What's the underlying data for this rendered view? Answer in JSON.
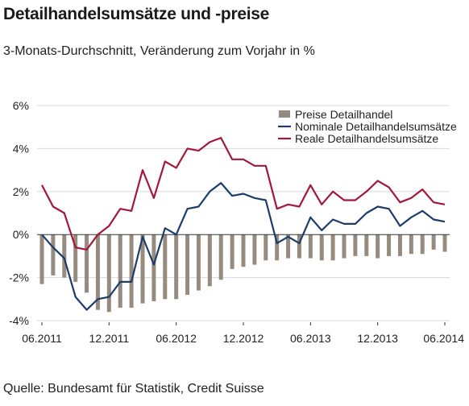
{
  "title": "Detailhandelsumsätze und -preise",
  "subtitle": "3-Monats-Durchschnitt, Veränderung zum Vorjahr in %",
  "source": "Quelle: Bundesamt für Statistik, Credit Suisse",
  "chart_data": {
    "type": "bar",
    "ylim": [
      -4,
      6
    ],
    "yticks": [
      "6%",
      "4%",
      "2%",
      "0%",
      "-2%",
      "-4%"
    ],
    "ytick_values": [
      6,
      4,
      2,
      0,
      -2,
      -4
    ],
    "xtick_labels": [
      "06.2011",
      "12.2011",
      "06.2012",
      "12.2012",
      "06.2013",
      "12.2013",
      "06.2014"
    ],
    "xtick_index": [
      0,
      6,
      12,
      18,
      24,
      30,
      36
    ],
    "grid": true,
    "legend_position": "top-right",
    "colors": {
      "preise": "#978b80",
      "nominale": "#1c3d6b",
      "reale": "#a3183a",
      "grid": "#d8d8d8"
    },
    "categories": [
      "06.2011",
      "07.2011",
      "08.2011",
      "09.2011",
      "10.2011",
      "11.2011",
      "12.2011",
      "01.2012",
      "02.2012",
      "03.2012",
      "04.2012",
      "05.2012",
      "06.2012",
      "07.2012",
      "08.2012",
      "09.2012",
      "10.2012",
      "11.2012",
      "12.2012",
      "01.2013",
      "02.2013",
      "03.2013",
      "04.2013",
      "05.2013",
      "06.2013",
      "07.2013",
      "08.2013",
      "09.2013",
      "10.2013",
      "11.2013",
      "12.2013",
      "01.2014",
      "02.2014",
      "03.2014",
      "04.2014",
      "05.2014",
      "06.2014"
    ],
    "series": [
      {
        "name": "Preise Detailhandel",
        "kind": "bar",
        "values": [
          -2.3,
          -1.9,
          -2.0,
          -2.2,
          -2.7,
          -3.5,
          -3.6,
          -3.4,
          -3.4,
          -3.2,
          -3.1,
          -3.0,
          -3.0,
          -2.8,
          -2.6,
          -2.4,
          -2.1,
          -1.6,
          -1.5,
          -1.4,
          -1.2,
          -1.2,
          -1.1,
          -1.1,
          -1.1,
          -1.2,
          -1.2,
          -1.1,
          -1.0,
          -1.0,
          -1.1,
          -1.0,
          -1.0,
          -0.9,
          -0.9,
          -0.7,
          -0.8
        ]
      },
      {
        "name": "Nominale Detailhandelsumsätze",
        "kind": "line",
        "values": [
          0.0,
          -0.6,
          -1.1,
          -2.9,
          -3.5,
          -3.0,
          -2.9,
          -2.2,
          -2.2,
          -0.1,
          -1.4,
          0.3,
          0.0,
          1.2,
          1.3,
          2.0,
          2.4,
          1.8,
          1.9,
          1.7,
          1.6,
          -0.4,
          -0.1,
          -0.4,
          0.8,
          0.2,
          0.7,
          0.5,
          0.5,
          1.0,
          1.3,
          1.2,
          0.4,
          0.8,
          1.1,
          0.7,
          0.6
        ]
      },
      {
        "name": "Reale Detailhandelsumsätze",
        "kind": "line",
        "values": [
          2.3,
          1.3,
          1.0,
          -0.6,
          -0.7,
          0.0,
          0.4,
          1.2,
          1.1,
          3.0,
          1.7,
          3.4,
          3.1,
          4.0,
          3.9,
          4.3,
          4.5,
          3.5,
          3.5,
          3.2,
          3.2,
          1.2,
          1.4,
          1.3,
          2.3,
          1.4,
          2.0,
          1.6,
          1.6,
          2.0,
          2.5,
          2.2,
          1.5,
          1.7,
          2.1,
          1.5,
          1.4
        ]
      }
    ]
  }
}
